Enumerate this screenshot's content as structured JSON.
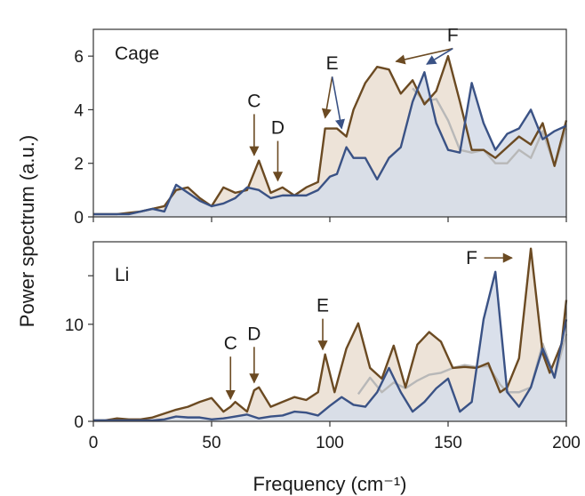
{
  "chart_data": {
    "type": "area",
    "xlabel": "Frequency (cm⁻¹)",
    "ylabel": "Power spectrum (a.u.)",
    "xlim": [
      0,
      200
    ],
    "xticks": [
      "0",
      "50",
      "100",
      "150",
      "200"
    ],
    "colors": {
      "brown_line": "#6b4a22",
      "brown_fill": "#ede3d8",
      "blue_line": "#3a5285",
      "blue_fill": "#d6dde9",
      "gray_line": "#b8b8b8"
    },
    "panels": [
      {
        "label": "Cage",
        "ylim": [
          0,
          7
        ],
        "yticks": [
          "0",
          "2",
          "4",
          "6"
        ],
        "series": [
          {
            "style": "brown",
            "x": [
              0,
              5,
              10,
              15,
              20,
              25,
              30,
              35,
              40,
              45,
              50,
              55,
              60,
              65,
              70,
              75,
              80,
              85,
              90,
              95,
              98,
              100,
              103,
              107,
              110,
              115,
              120,
              125,
              130,
              135,
              140,
              145,
              150,
              155,
              160,
              165,
              170,
              175,
              180,
              185,
              190,
              195,
              200
            ],
            "values": [
              0.1,
              0.1,
              0.1,
              0.15,
              0.2,
              0.3,
              0.4,
              1.0,
              1.1,
              0.7,
              0.4,
              1.1,
              0.9,
              1.0,
              2.1,
              0.9,
              1.1,
              0.8,
              1.1,
              1.3,
              3.3,
              3.3,
              3.3,
              3.0,
              4.0,
              5.0,
              5.6,
              5.5,
              4.6,
              5.1,
              4.2,
              4.7,
              6.0,
              4.3,
              2.5,
              2.5,
              2.2,
              2.6,
              3.0,
              2.7,
              3.5,
              1.9,
              3.6
            ]
          },
          {
            "style": "gray",
            "x": [
              135,
              140,
              145,
              150,
              155,
              160,
              165,
              170,
              175,
              180,
              185,
              190,
              195,
              200
            ],
            "values": [
              4.8,
              4.3,
              4.4,
              3.6,
              2.5,
              2.4,
              2.5,
              2.0,
              2.0,
              2.5,
              2.2,
              3.2,
              1.9,
              3.3
            ]
          },
          {
            "style": "blue",
            "x": [
              0,
              5,
              10,
              15,
              20,
              25,
              30,
              35,
              40,
              45,
              50,
              55,
              60,
              65,
              70,
              75,
              80,
              85,
              90,
              95,
              100,
              103,
              107,
              110,
              115,
              120,
              125,
              130,
              135,
              140,
              145,
              150,
              155,
              160,
              165,
              170,
              175,
              180,
              185,
              190,
              195,
              200
            ],
            "values": [
              0.1,
              0.1,
              0.1,
              0.1,
              0.2,
              0.3,
              0.2,
              1.2,
              0.9,
              0.6,
              0.4,
              0.5,
              0.7,
              1.1,
              1.0,
              0.7,
              0.8,
              0.8,
              0.8,
              1.0,
              1.5,
              1.6,
              2.6,
              2.2,
              2.2,
              1.4,
              2.2,
              2.6,
              4.3,
              5.4,
              3.5,
              2.5,
              2.4,
              5.0,
              3.5,
              2.5,
              3.1,
              3.3,
              4.0,
              2.9,
              3.2,
              3.4
            ]
          }
        ],
        "annotations": [
          {
            "text": "C",
            "x": 68,
            "y": 4.1,
            "color": "brown",
            "arrows": [
              {
                "to_x": 68,
                "to_y": 2.3
              }
            ]
          },
          {
            "text": "D",
            "x": 78,
            "y": 3.1,
            "color": "brown",
            "arrows": [
              {
                "to_x": 78,
                "to_y": 1.35
              }
            ]
          },
          {
            "text": "E",
            "x": 101,
            "y": 5.5,
            "color": "brown",
            "arrows": [
              {
                "to_x": 98,
                "to_y": 3.7
              },
              {
                "to_x": 105,
                "to_y": 3.3
              }
            ]
          },
          {
            "text": "F",
            "x": 152,
            "y": 6.55,
            "color": "brown",
            "arrows": [
              {
                "to_x": 128,
                "to_y": 5.8
              },
              {
                "to_x": 141,
                "to_y": 5.7
              }
            ]
          }
        ]
      },
      {
        "label": "Li",
        "ylim": [
          0,
          18.5
        ],
        "yticks": [
          "0",
          "10"
        ],
        "series": [
          {
            "style": "brown",
            "x": [
              0,
              5,
              10,
              15,
              20,
              25,
              30,
              35,
              40,
              45,
              50,
              55,
              58,
              60,
              65,
              68,
              70,
              75,
              80,
              85,
              90,
              95,
              98,
              102,
              107,
              112,
              117,
              122,
              127,
              132,
              137,
              142,
              147,
              152,
              157,
              162,
              167,
              172,
              175,
              180,
              185,
              190,
              193,
              198,
              200
            ],
            "values": [
              0.1,
              0.1,
              0.3,
              0.2,
              0.2,
              0.4,
              0.8,
              1.2,
              1.5,
              2.0,
              2.4,
              1.0,
              1.5,
              2.0,
              1.0,
              3.2,
              3.5,
              1.5,
              2.0,
              2.5,
              2.2,
              3.0,
              6.9,
              3.0,
              7.5,
              10.1,
              5.5,
              4.4,
              7.8,
              3.5,
              7.9,
              9.2,
              8.2,
              5.5,
              5.6,
              5.5,
              6.0,
              3.0,
              3.5,
              6.5,
              17.8,
              7.0,
              5.0,
              8.0,
              12.5
            ]
          },
          {
            "style": "gray",
            "x": [
              112,
              117,
              122,
              127,
              132,
              137,
              142,
              147,
              152,
              157,
              162,
              167,
              172,
              175,
              180,
              185,
              190,
              195,
              200
            ],
            "values": [
              2.8,
              4.5,
              3.0,
              4.0,
              3.4,
              4.2,
              4.8,
              5.0,
              5.5,
              5.8,
              5.6,
              5.7,
              3.8,
              3.0,
              3.0,
              3.5,
              8.0,
              4.5,
              9.0
            ]
          },
          {
            "style": "blue",
            "x": [
              0,
              5,
              10,
              15,
              20,
              25,
              30,
              35,
              40,
              45,
              50,
              55,
              60,
              65,
              70,
              75,
              80,
              85,
              90,
              95,
              100,
              105,
              110,
              115,
              120,
              125,
              130,
              135,
              140,
              145,
              150,
              155,
              160,
              165,
              170,
              175,
              180,
              185,
              190,
              195,
              200
            ],
            "values": [
              0.1,
              0.1,
              0.1,
              0.1,
              0.1,
              0.1,
              0.2,
              0.5,
              0.4,
              0.4,
              0.2,
              0.3,
              0.5,
              0.7,
              0.3,
              0.5,
              0.6,
              1.0,
              0.9,
              0.6,
              1.6,
              2.5,
              1.7,
              1.5,
              3.0,
              5.5,
              3.0,
              1.0,
              2.0,
              3.4,
              4.4,
              1.0,
              2.0,
              10.5,
              15.4,
              3.0,
              1.5,
              3.5,
              7.5,
              4.5,
              10.5
            ]
          }
        ],
        "annotations": [
          {
            "text": "C",
            "x": 58,
            "y": 7.4,
            "color": "brown",
            "arrows": [
              {
                "to_x": 58,
                "to_y": 2.3
              }
            ]
          },
          {
            "text": "D",
            "x": 68,
            "y": 8.4,
            "color": "brown",
            "arrows": [
              {
                "to_x": 68,
                "to_y": 4.0
              }
            ]
          },
          {
            "text": "E",
            "x": 97,
            "y": 11.3,
            "color": "brown",
            "arrows": [
              {
                "to_x": 97,
                "to_y": 7.4
              }
            ]
          },
          {
            "text": "F",
            "x": 160,
            "y": 16.2,
            "color": "brown",
            "arrows": [
              {
                "to_x": 177,
                "to_y": 16.2
              }
            ]
          }
        ]
      }
    ]
  }
}
